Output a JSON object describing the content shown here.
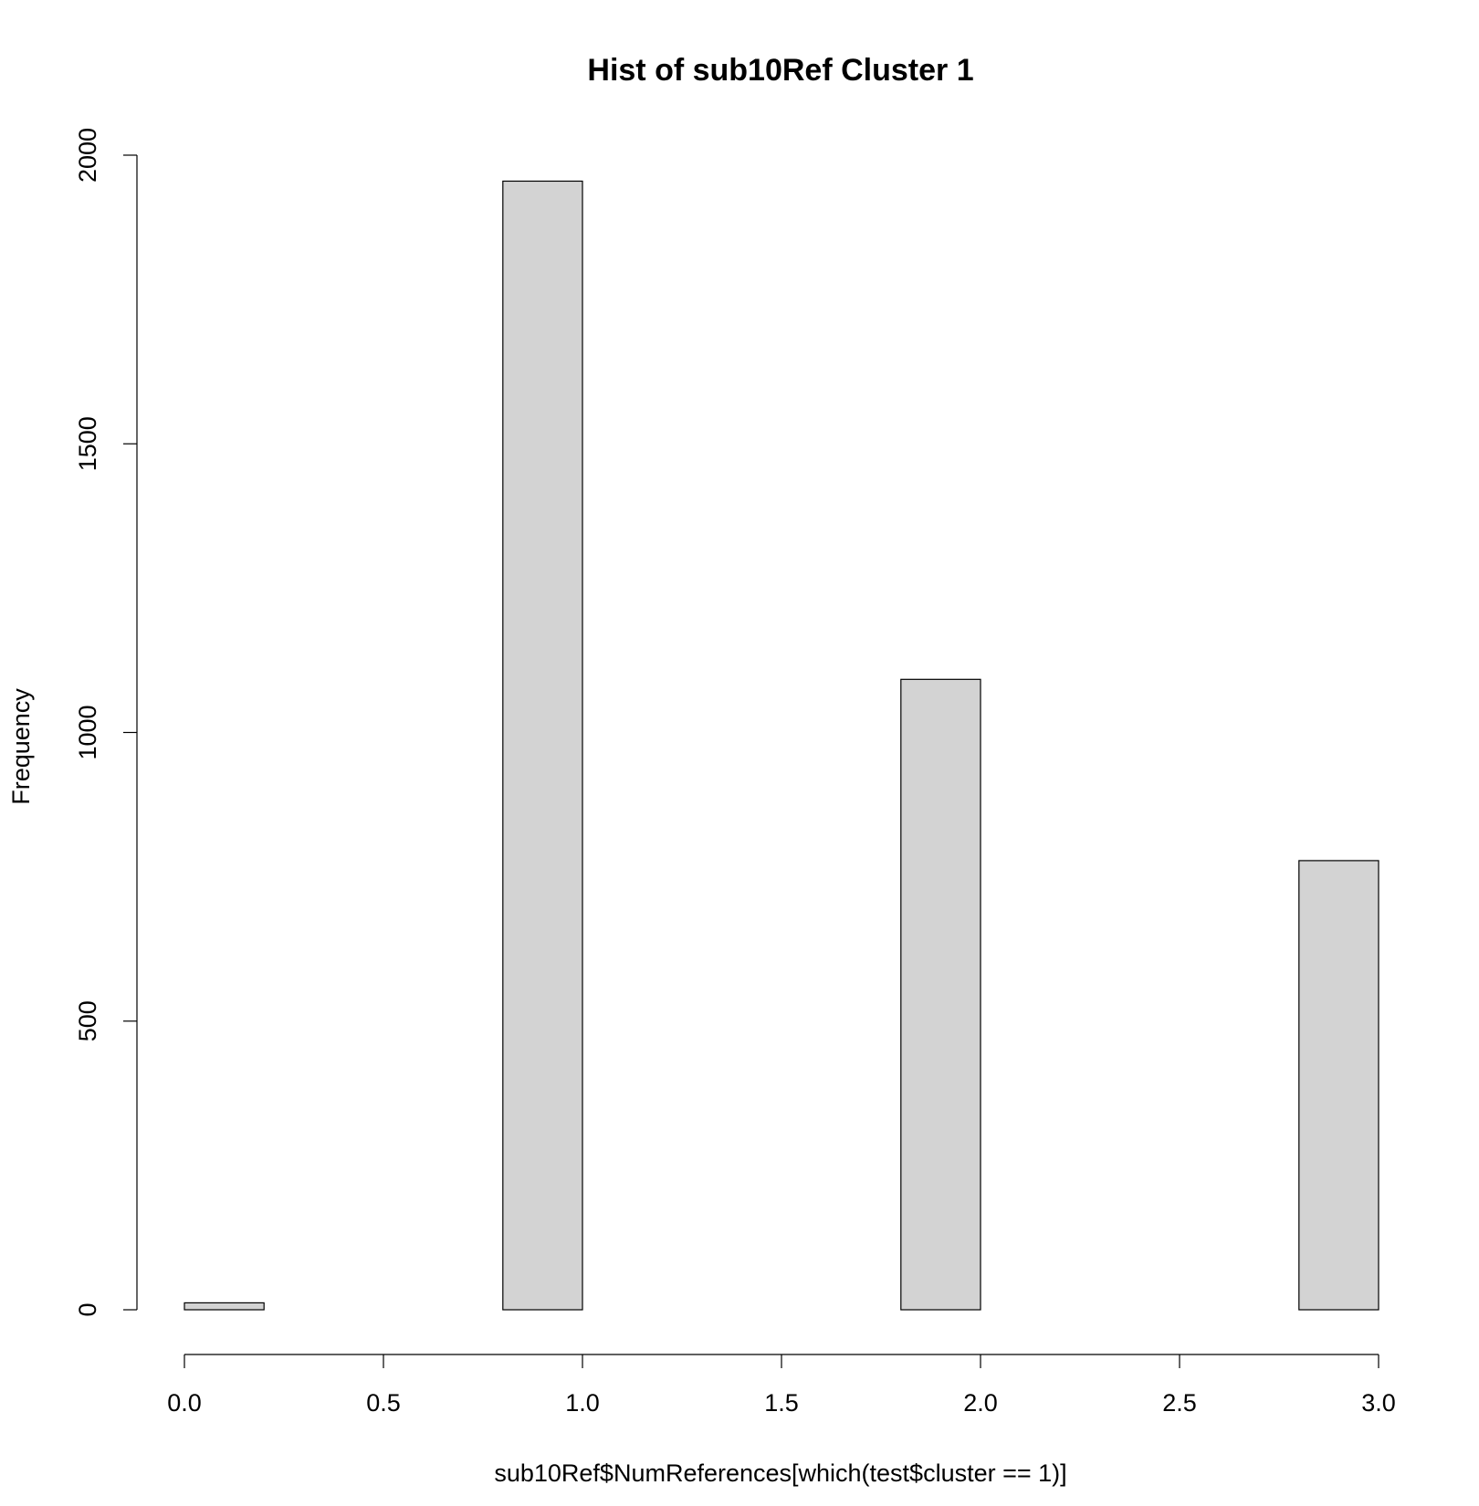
{
  "chart_data": {
    "type": "bar",
    "title": "Hist of sub10Ref Cluster 1",
    "xlabel": "sub10Ref$NumReferences[which(test$cluster == 1)]",
    "ylabel": "Frequency",
    "bins": [
      {
        "start": 0.0,
        "end": 0.2,
        "count": 12
      },
      {
        "start": 0.2,
        "end": 0.4,
        "count": 0
      },
      {
        "start": 0.4,
        "end": 0.6,
        "count": 0
      },
      {
        "start": 0.6,
        "end": 0.8,
        "count": 0
      },
      {
        "start": 0.8,
        "end": 1.0,
        "count": 1955
      },
      {
        "start": 1.0,
        "end": 1.2,
        "count": 0
      },
      {
        "start": 1.2,
        "end": 1.4,
        "count": 0
      },
      {
        "start": 1.4,
        "end": 1.6,
        "count": 0
      },
      {
        "start": 1.6,
        "end": 1.8,
        "count": 0
      },
      {
        "start": 1.8,
        "end": 2.0,
        "count": 1092
      },
      {
        "start": 2.0,
        "end": 2.2,
        "count": 0
      },
      {
        "start": 2.2,
        "end": 2.4,
        "count": 0
      },
      {
        "start": 2.4,
        "end": 2.6,
        "count": 0
      },
      {
        "start": 2.6,
        "end": 2.8,
        "count": 0
      },
      {
        "start": 2.8,
        "end": 3.0,
        "count": 778
      }
    ],
    "xlim": [
      0,
      3
    ],
    "ylim": [
      0,
      2000
    ],
    "x_ticks": [
      "0.0",
      "0.5",
      "1.0",
      "1.5",
      "2.0",
      "2.5",
      "3.0"
    ],
    "y_ticks": [
      "0",
      "500",
      "1000",
      "1500",
      "2000"
    ],
    "bar_fill": "#d3d3d3",
    "bar_stroke": "#000000",
    "grid": false,
    "legend": "none"
  }
}
